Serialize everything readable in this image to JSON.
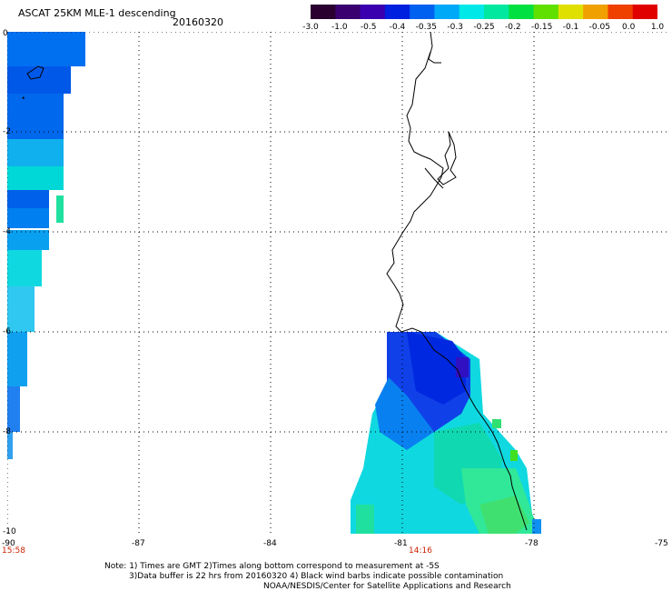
{
  "header": {
    "title": "ASCAT 25KM MLE-1 descending",
    "date": "20160320"
  },
  "colorbar": {
    "ticks": [
      "-3.0",
      "-1.0",
      "-0.5",
      "-0.4",
      "-0.35",
      "-0.3",
      "-0.25",
      "-0.2",
      "-0.15",
      "-0.1",
      "-0.05",
      "0.0",
      "1.0"
    ],
    "colors": [
      "#2a0030",
      "#3a0070",
      "#3a00b0",
      "#0020e0",
      "#0060f0",
      "#00a8f8",
      "#00e8e8",
      "#00e8a0",
      "#00e040",
      "#60e000",
      "#e0e000",
      "#f0a000",
      "#f04000",
      "#e00000"
    ]
  },
  "axes": {
    "x_labels": [
      "-90",
      "-87",
      "-84",
      "-81",
      "-78",
      "-75"
    ],
    "y_labels": [
      "0",
      "-2",
      "-4",
      "-6",
      "-8",
      "-10"
    ]
  },
  "times": {
    "left": "15:58",
    "center": "14:16"
  },
  "footer": {
    "line1": "Note: 1) Times are GMT 2)Times along bottom correspond to measurement at -5S",
    "line2": "3)Data buffer is 22 hrs from 20160320 4) Black wind barbs indicate possible contamination",
    "line3": "NOAA/NESDIS/Center for Satellite Applications and Research"
  }
}
